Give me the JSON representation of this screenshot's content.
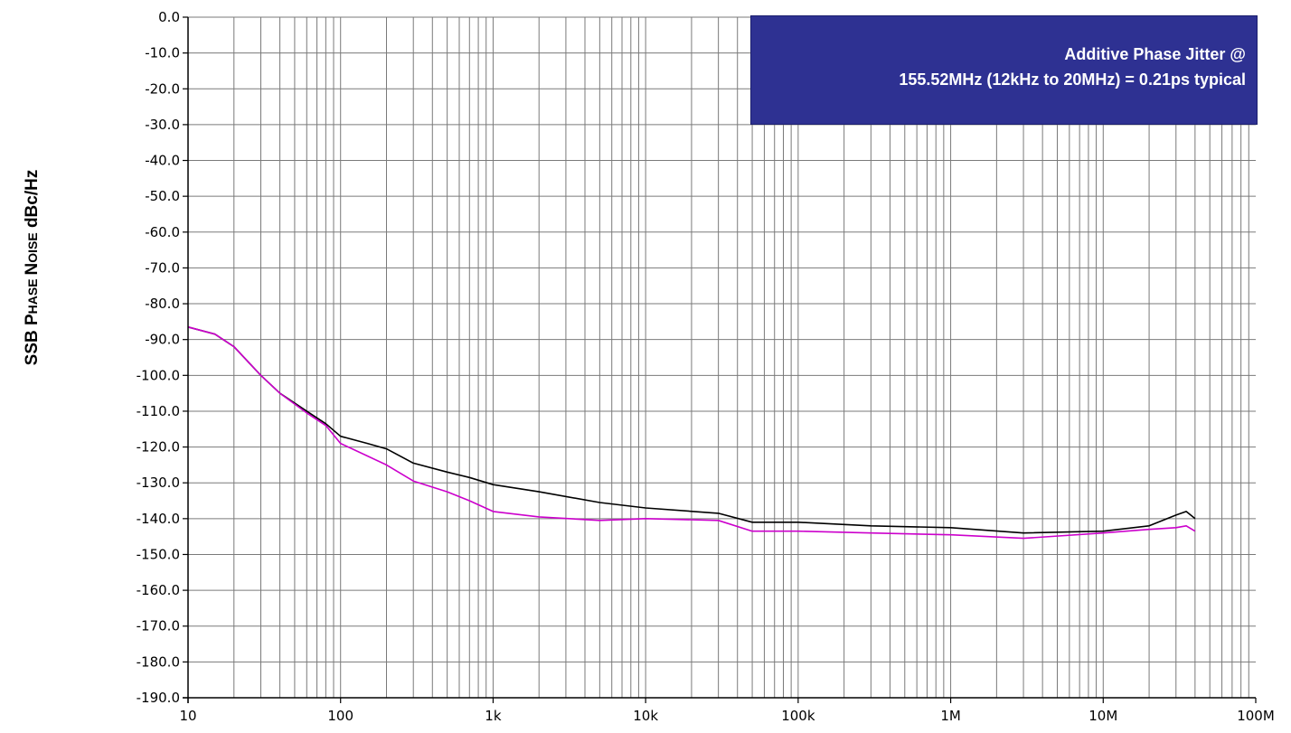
{
  "chart_data": {
    "type": "line",
    "title": "",
    "ylabel": {
      "a": "SSB ",
      "b": "P",
      "c": "HASE ",
      "d": "N",
      "e": "OISE",
      "f": " dBc/Hz"
    },
    "xlabel": "",
    "x_scale": "log",
    "xlim": [
      10,
      100000000
    ],
    "ylim": [
      -190,
      0
    ],
    "x_ticks": [
      10,
      100,
      1000,
      10000,
      100000,
      1000000,
      10000000,
      100000000
    ],
    "x_tick_labels": [
      "10",
      "100",
      "1k",
      "10k",
      "100k",
      "1M",
      "10M",
      "100M"
    ],
    "y_ticks": [
      0,
      -10,
      -20,
      -30,
      -40,
      -50,
      -60,
      -70,
      -80,
      -90,
      -100,
      -110,
      -120,
      -130,
      -140,
      -150,
      -160,
      -170,
      -180,
      -190
    ],
    "y_tick_labels": [
      "0.0",
      "-10.0",
      "-20.0",
      "-30.0",
      "-40.0",
      "-50.0",
      "-60.0",
      "-70.0",
      "-80.0",
      "-90.0",
      "-100.0",
      "-110.0",
      "-120.0",
      "-130.0",
      "-140.0",
      "-150.0",
      "-160.0",
      "-170.0",
      "-180.0",
      "-190.0"
    ],
    "grid": true,
    "annotation": {
      "line1": "Additive Phase Jitter @",
      "line2": "155.52MHz (12kHz to 20MHz) = 0.21ps typical",
      "background": "#2e3192"
    },
    "series": [
      {
        "color": "#000000",
        "x": [
          10,
          15,
          20,
          30,
          40,
          60,
          80,
          100,
          150,
          200,
          300,
          500,
          700,
          1000,
          2000,
          5000,
          10000,
          30000,
          50000,
          100000,
          300000,
          1000000,
          3000000,
          10000000,
          20000000,
          30000000,
          35000000,
          40000000
        ],
        "y": [
          -86.5,
          -88.5,
          -92,
          -100,
          -105,
          -110,
          -113.5,
          -117,
          -119,
          -120.5,
          -124.5,
          -127,
          -128.5,
          -130.5,
          -132.5,
          -135.5,
          -137,
          -138.5,
          -141,
          -141,
          -142,
          -142.5,
          -144,
          -143.5,
          -142,
          -139,
          -138,
          -140
        ]
      },
      {
        "color": "#cc00cc",
        "x": [
          10,
          15,
          20,
          30,
          40,
          60,
          80,
          100,
          150,
          200,
          300,
          500,
          700,
          1000,
          2000,
          5000,
          10000,
          30000,
          50000,
          100000,
          300000,
          1000000,
          3000000,
          10000000,
          20000000,
          30000000,
          35000000,
          40000000
        ],
        "y": [
          -86.5,
          -88.5,
          -92,
          -100,
          -105,
          -110.5,
          -114,
          -119,
          -122.5,
          -125,
          -129.5,
          -132.5,
          -135,
          -138,
          -139.5,
          -140.5,
          -140,
          -140.5,
          -143.5,
          -143.5,
          -144,
          -144.5,
          -145.5,
          -144,
          -143,
          -142.5,
          -142,
          -143.5
        ]
      }
    ]
  }
}
